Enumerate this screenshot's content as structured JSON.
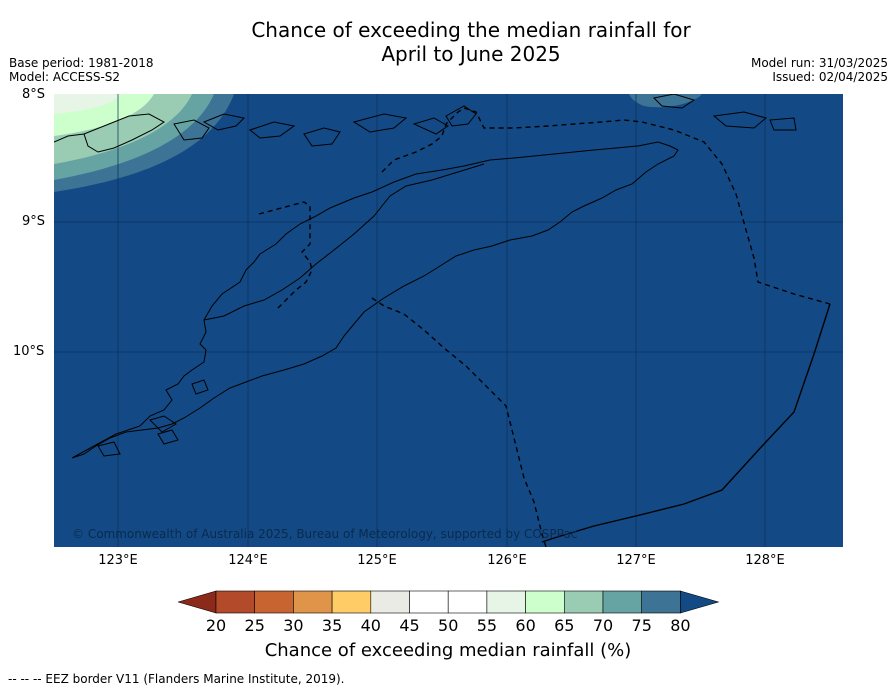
{
  "title_line1": "Chance of exceeding the median rainfall for",
  "title_line2": "April to June 2025",
  "base_period": "Base period: 1981-2018",
  "model": "Model: ACCESS-S2",
  "model_run": "Model run: 31/03/2025",
  "issued": "Issued: 02/04/2025",
  "map": {
    "lat_labels": [
      "8°S",
      "9°S",
      "10°S"
    ],
    "lon_labels": [
      "123°E",
      "124°E",
      "125°E",
      "126°E",
      "127°E",
      "128°E"
    ],
    "copyright": "© Commonwealth of Australia 2025, Bureau of Meteorology, supported by COSPPac",
    "ocean_color": "#134a86"
  },
  "legend": {
    "label": "Chance of exceeding median rainfall (%)",
    "ticks": [
      "20",
      "25",
      "30",
      "35",
      "40",
      "45",
      "50",
      "55",
      "60",
      "65",
      "70",
      "75",
      "80"
    ],
    "colors": [
      "#8b2a1a",
      "#b34a2a",
      "#c8642f",
      "#e0944a",
      "#ffcc66",
      "#ebebe6",
      "#ffffff",
      "#ffffff",
      "#e6f5e6",
      "#ccffcc",
      "#99ccb3",
      "#66a3a3",
      "#3d7394",
      "#134a86"
    ]
  },
  "footnote": "--  --  -- EEZ border V11 (Flanders Marine Institute, 2019)."
}
